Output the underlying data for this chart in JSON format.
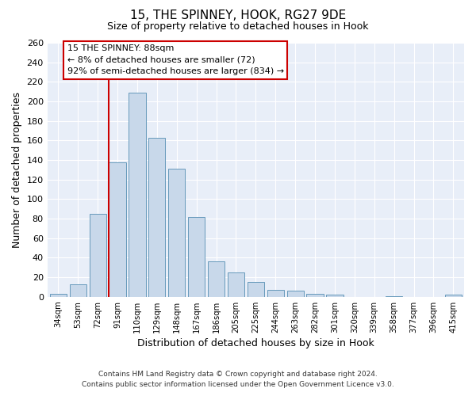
{
  "title": "15, THE SPINNEY, HOOK, RG27 9DE",
  "subtitle": "Size of property relative to detached houses in Hook",
  "xlabel": "Distribution of detached houses by size in Hook",
  "ylabel": "Number of detached properties",
  "bar_color": "#c8d8ea",
  "bar_edge_color": "#6699bb",
  "background_color": "#e8eef8",
  "categories": [
    "34sqm",
    "53sqm",
    "72sqm",
    "91sqm",
    "110sqm",
    "129sqm",
    "148sqm",
    "167sqm",
    "186sqm",
    "205sqm",
    "225sqm",
    "244sqm",
    "263sqm",
    "282sqm",
    "301sqm",
    "320sqm",
    "339sqm",
    "358sqm",
    "377sqm",
    "396sqm",
    "415sqm"
  ],
  "values": [
    3,
    13,
    85,
    138,
    209,
    163,
    131,
    82,
    36,
    25,
    15,
    7,
    6,
    3,
    2,
    0,
    0,
    1,
    0,
    0,
    2
  ],
  "ylim": [
    0,
    260
  ],
  "yticks": [
    0,
    20,
    40,
    60,
    80,
    100,
    120,
    140,
    160,
    180,
    200,
    220,
    240,
    260
  ],
  "vline_color": "#cc0000",
  "vline_index": 3,
  "annotation_title": "15 THE SPINNEY: 88sqm",
  "annotation_line1": "← 8% of detached houses are smaller (72)",
  "annotation_line2": "92% of semi-detached houses are larger (834) →",
  "annotation_box_color": "#ffffff",
  "annotation_box_edge": "#cc0000",
  "footer_line1": "Contains HM Land Registry data © Crown copyright and database right 2024.",
  "footer_line2": "Contains public sector information licensed under the Open Government Licence v3.0."
}
